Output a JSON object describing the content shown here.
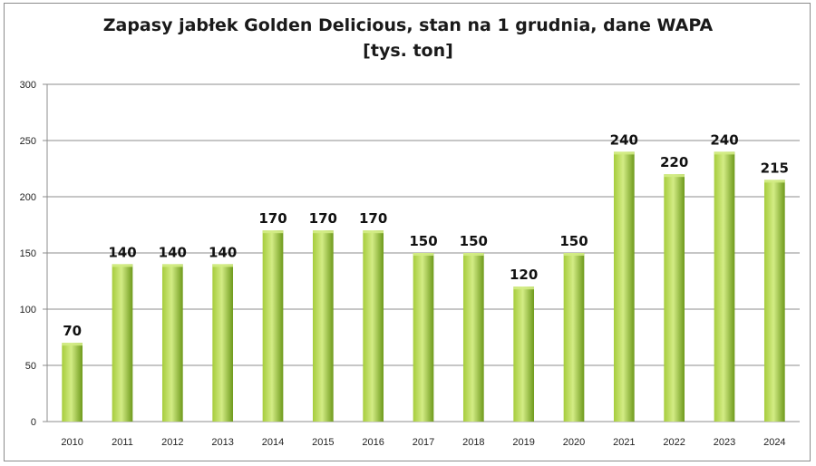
{
  "chart_data": {
    "type": "bar",
    "title_line1": "Zapasy jabłek Golden Delicious, stan na 1 grudnia, dane WAPA",
    "title_line2": "[tys. ton]",
    "categories": [
      "2010",
      "2011",
      "2012",
      "2013",
      "2014",
      "2015",
      "2016",
      "2017",
      "2018",
      "2019",
      "2020",
      "2021",
      "2022",
      "2023",
      "2024"
    ],
    "values": [
      70,
      140,
      140,
      140,
      170,
      170,
      170,
      150,
      150,
      120,
      150,
      240,
      220,
      240,
      215
    ],
    "ylim": [
      0,
      300
    ],
    "yticks": [
      0,
      50,
      100,
      150,
      200,
      250,
      300
    ],
    "grid": true,
    "xlabel": "",
    "ylabel": "",
    "colors": {
      "bar_light": "#d3ec85",
      "bar_mid": "#a6cc3c",
      "bar_dark": "#6e9a1c",
      "grid": "#8c8c8c"
    }
  }
}
